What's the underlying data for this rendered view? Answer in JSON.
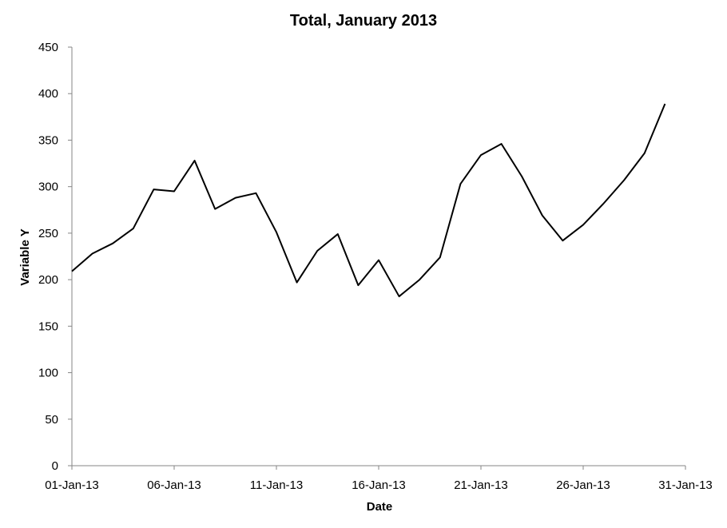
{
  "chart_data": {
    "type": "line",
    "title": "Total, January 2013",
    "xlabel": "Date",
    "ylabel": "Variable Y",
    "ylim": [
      0,
      450
    ],
    "yticks": [
      "0",
      "50",
      "100",
      "150",
      "200",
      "250",
      "300",
      "350",
      "400",
      "450"
    ],
    "xlim": [
      "2013-01-01",
      "2013-01-31"
    ],
    "xticks": [
      {
        "date": "2013-01-01",
        "label": "01-Jan-13"
      },
      {
        "date": "2013-01-06",
        "label": "06-Jan-13"
      },
      {
        "date": "2013-01-11",
        "label": "11-Jan-13"
      },
      {
        "date": "2013-01-16",
        "label": "16-Jan-13"
      },
      {
        "date": "2013-01-21",
        "label": "21-Jan-13"
      },
      {
        "date": "2013-01-26",
        "label": "26-Jan-13"
      },
      {
        "date": "2013-01-31",
        "label": "31-Jan-13"
      }
    ],
    "grid": false,
    "legend": "none",
    "line_color": "#000000",
    "series": [
      {
        "x": [
          "2013-01-01",
          "2013-01-02",
          "2013-01-03",
          "2013-01-04",
          "2013-01-05",
          "2013-01-06",
          "2013-01-07",
          "2013-01-08",
          "2013-01-09",
          "2013-01-10",
          "2013-01-11",
          "2013-01-12",
          "2013-01-13",
          "2013-01-14",
          "2013-01-15",
          "2013-01-16",
          "2013-01-17",
          "2013-01-18",
          "2013-01-19",
          "2013-01-20",
          "2013-01-21",
          "2013-01-22",
          "2013-01-23",
          "2013-01-24",
          "2013-01-25",
          "2013-01-26",
          "2013-01-27",
          "2013-01-28",
          "2013-01-29",
          "2013-01-30"
        ],
        "values": [
          209,
          228,
          239,
          255,
          297,
          295,
          328,
          276,
          288,
          293,
          251,
          197,
          231,
          249,
          194,
          221,
          182,
          200,
          224,
          303,
          334,
          346,
          311,
          269,
          242,
          259,
          282,
          307,
          336,
          389
        ]
      }
    ]
  }
}
